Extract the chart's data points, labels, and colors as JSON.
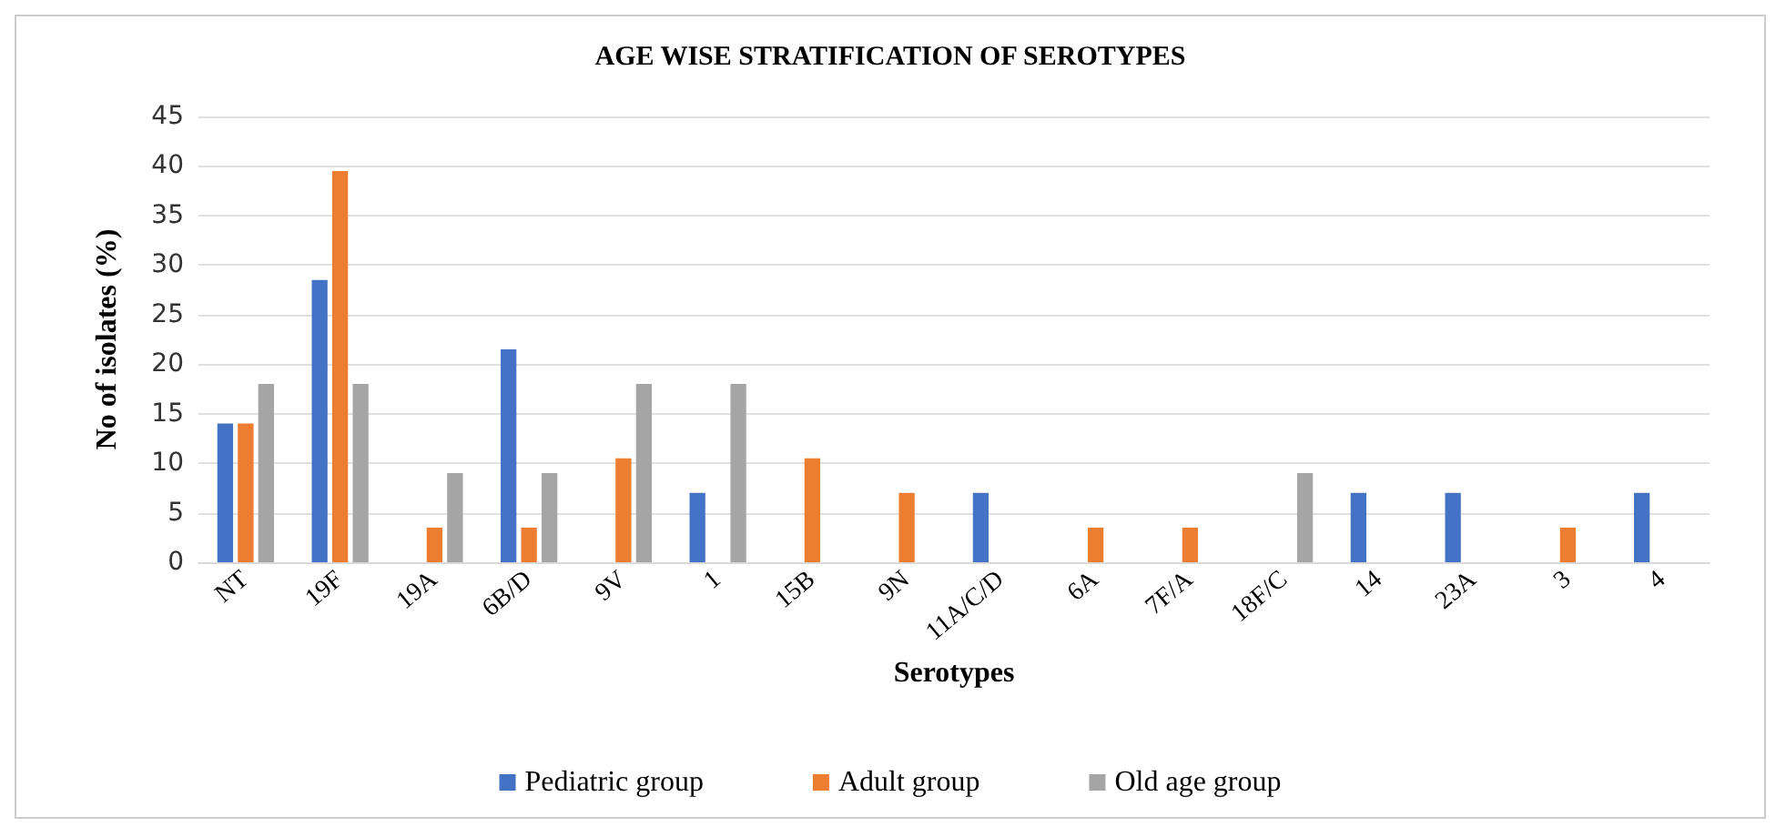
{
  "chart_data": {
    "type": "bar",
    "title": "AGE WISE STRATIFICATION OF SEROTYPES",
    "xlabel": "Serotypes",
    "ylabel": "No of isolates (%)",
    "categories": [
      "NT",
      "19F",
      "19A",
      "6B/D",
      "9V",
      "1",
      "15B",
      "9N",
      "11A/C/D",
      "6A",
      "7F/A",
      "18F/C",
      "14",
      "23A",
      "3",
      "4"
    ],
    "series": [
      {
        "name": "Pediatric group",
        "color": "#4472c4",
        "values": [
          14,
          28.5,
          0,
          21.5,
          0,
          7,
          0,
          0,
          7,
          0,
          0,
          0,
          7,
          7,
          0,
          7
        ]
      },
      {
        "name": "Adult group",
        "color": "#ed7d31",
        "values": [
          14,
          39.5,
          3.5,
          3.5,
          10.5,
          0,
          10.5,
          7,
          0,
          3.5,
          3.5,
          0,
          0,
          0,
          3.5,
          0
        ]
      },
      {
        "name": "Old age group",
        "color": "#a5a5a5",
        "values": [
          18,
          18,
          9,
          9,
          18,
          18,
          0,
          0,
          0,
          0,
          0,
          9,
          0,
          0,
          0,
          0
        ]
      }
    ],
    "ylim": [
      0,
      45
    ],
    "yticks": [
      0,
      5,
      10,
      15,
      20,
      25,
      30,
      35,
      40,
      45
    ],
    "grid": "y",
    "legend": "bottom"
  }
}
